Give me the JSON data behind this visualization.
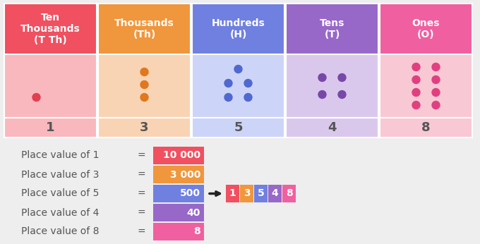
{
  "bg_color": "#eeeeee",
  "col_headers": [
    "Ten\nThousands\n(T Th)",
    "Thousands\n(Th)",
    "Hundreds\n(H)",
    "Tens\n(T)",
    "Ones\n(O)"
  ],
  "header_colors": [
    "#f05060",
    "#f0963c",
    "#7080e0",
    "#9868c8",
    "#f060a0"
  ],
  "dot_bg_colors": [
    "#f8b8be",
    "#f8d4b4",
    "#ccd4f8",
    "#dac8ec",
    "#f8c8d4"
  ],
  "digit_bg_colors": [
    "#f8b8be",
    "#f8d4b4",
    "#ccd4f8",
    "#dac8ec",
    "#f8c8d4"
  ],
  "dot_colors": [
    "#e04050",
    "#e07820",
    "#5068d0",
    "#7848a8",
    "#e04080"
  ],
  "digits": [
    "1",
    "3",
    "5",
    "4",
    "8"
  ],
  "dot_counts": [
    1,
    3,
    5,
    4,
    8
  ],
  "place_labels": [
    "Place value of 1",
    "Place value of 3",
    "Place value of 5",
    "Place value of 4",
    "Place value of 8"
  ],
  "place_values": [
    "10 000",
    "3 000",
    "500",
    "40",
    "8"
  ],
  "value_box_colors": [
    "#f05060",
    "#f0963c",
    "#7080e0",
    "#9868c8",
    "#f060a0"
  ],
  "number_digits": [
    "1",
    "3",
    "5",
    "4",
    "8"
  ],
  "number_digit_colors": [
    "#f05060",
    "#f0963c",
    "#7080e0",
    "#9868c8",
    "#f060a0"
  ]
}
